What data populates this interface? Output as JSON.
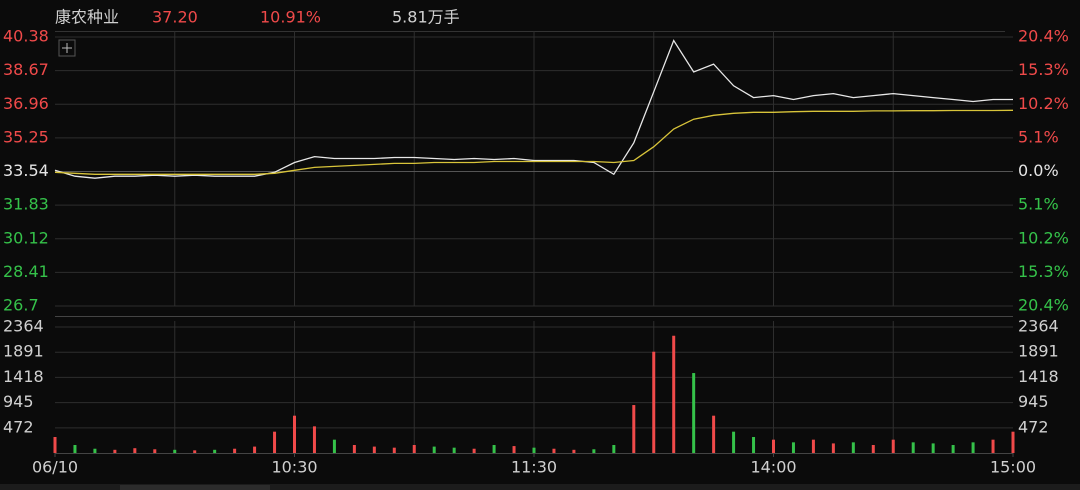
{
  "header": {
    "name": "康农种业",
    "price": "37.20",
    "change": "10.91%",
    "volume": "5.81万手"
  },
  "colors": {
    "up": "#f04a4a",
    "down": "#35c24a",
    "flat": "#e6e6e6",
    "header_text": "#d0d0d0"
  },
  "chart_data": [
    {
      "type": "line",
      "x": [
        0,
        5,
        10,
        15,
        20,
        25,
        30,
        35,
        40,
        45,
        50,
        55,
        60,
        65,
        70,
        75,
        80,
        85,
        90,
        95,
        100,
        105,
        110,
        115,
        120,
        125,
        130,
        135,
        140,
        145,
        150,
        155,
        160,
        165,
        170,
        175,
        180,
        185,
        190,
        195,
        200,
        205,
        210,
        215,
        220,
        225,
        230,
        235,
        240
      ],
      "xlim": [
        0,
        240
      ],
      "xticks": [
        {
          "value": 0,
          "label": "06/10"
        },
        {
          "value": 60,
          "label": "10:30"
        },
        {
          "value": 120,
          "label": "11:30"
        },
        {
          "value": 180,
          "label": "14:00"
        },
        {
          "value": 240,
          "label": "15:00"
        }
      ],
      "x_grid_step": 30,
      "series": [
        {
          "color": "#e8e8e8",
          "values": [
            33.6,
            33.3,
            33.2,
            33.3,
            33.3,
            33.35,
            33.3,
            33.35,
            33.3,
            33.3,
            33.3,
            33.5,
            34.0,
            34.3,
            34.2,
            34.2,
            34.2,
            34.25,
            34.25,
            34.2,
            34.15,
            34.2,
            34.15,
            34.2,
            34.1,
            34.1,
            34.1,
            34.0,
            33.4,
            35.0,
            37.6,
            40.2,
            38.6,
            39.0,
            37.9,
            37.3,
            37.4,
            37.2,
            37.4,
            37.5,
            37.3,
            37.4,
            37.5,
            37.4,
            37.3,
            37.2,
            37.1,
            37.2,
            37.2
          ]
        },
        {
          "color": "#d8c43a",
          "values": [
            33.5,
            33.45,
            33.4,
            33.4,
            33.4,
            33.4,
            33.4,
            33.4,
            33.4,
            33.4,
            33.4,
            33.45,
            33.6,
            33.75,
            33.8,
            33.85,
            33.9,
            33.95,
            33.95,
            34.0,
            34.0,
            34.0,
            34.05,
            34.05,
            34.05,
            34.05,
            34.05,
            34.05,
            34.0,
            34.1,
            34.8,
            35.7,
            36.2,
            36.4,
            36.5,
            36.55,
            36.55,
            36.58,
            36.6,
            36.6,
            36.6,
            36.62,
            36.62,
            36.63,
            36.63,
            36.64,
            36.64,
            36.64,
            36.65
          ]
        }
      ],
      "ylim": [
        26.7,
        40.38
      ],
      "yticks": [
        40.38,
        38.67,
        36.96,
        35.25,
        33.54,
        31.83,
        30.12,
        28.41,
        26.7
      ],
      "y2lim": [
        -20.4,
        20.4
      ],
      "y2ticks": [
        {
          "value": 20.4,
          "label": "20.4%"
        },
        {
          "value": 15.3,
          "label": "15.3%"
        },
        {
          "value": 10.2,
          "label": "10.2%"
        },
        {
          "value": 5.1,
          "label": "5.1%"
        },
        {
          "value": 0.0,
          "label": "0.0%"
        },
        {
          "value": -5.1,
          "label": "5.1%"
        },
        {
          "value": -10.2,
          "label": "10.2%"
        },
        {
          "value": -15.3,
          "label": "15.3%"
        },
        {
          "value": -20.4,
          "label": "20.4%"
        }
      ],
      "grid": true
    },
    {
      "type": "bar",
      "values": [
        300,
        150,
        80,
        60,
        90,
        70,
        60,
        50,
        60,
        80,
        120,
        400,
        700,
        500,
        250,
        150,
        120,
        100,
        150,
        120,
        100,
        80,
        150,
        130,
        100,
        80,
        60,
        70,
        150,
        900,
        1900,
        2200,
        1500,
        700,
        400,
        300,
        250,
        200,
        250,
        180,
        200,
        150,
        250,
        200,
        180,
        150,
        200,
        250,
        400
      ],
      "ylim": [
        0,
        2364
      ],
      "yticks": [
        2364,
        1891,
        1418,
        945,
        472
      ],
      "grid": true
    }
  ]
}
